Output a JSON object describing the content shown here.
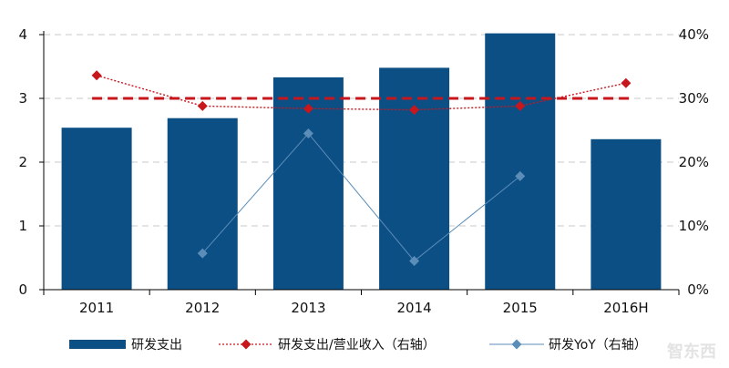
{
  "chart_data": {
    "type": "bar",
    "categories": [
      "2011",
      "2012",
      "2013",
      "2014",
      "2015",
      "2016H"
    ],
    "series": [
      {
        "name": "研发支出",
        "type": "bar",
        "axis": "left",
        "color": "#0c4f85",
        "values": [
          2.54,
          2.69,
          3.33,
          3.48,
          4.02,
          2.36
        ]
      },
      {
        "name": "研发支出/营业收入（右轴）",
        "type": "line",
        "axis": "right",
        "color": "#c8161d",
        "line_style": "dotted",
        "marker": "diamond",
        "values": [
          0.336,
          0.288,
          0.284,
          0.282,
          0.288,
          0.324
        ]
      },
      {
        "name": "研发YoY（右轴）",
        "type": "line",
        "axis": "right",
        "color": "#5b8db8",
        "line_style": "solid",
        "marker": "diamond",
        "values": [
          null,
          0.057,
          0.245,
          0.045,
          0.178,
          null
        ]
      }
    ],
    "reference_line": {
      "axis": "right",
      "value": 0.3,
      "color": "#c8161d",
      "style": "dashed",
      "x_extent": [
        "2011",
        "2016H"
      ]
    },
    "y_left": {
      "range": [
        0,
        4
      ],
      "ticks": [
        0,
        1,
        2,
        3,
        4
      ],
      "tick_labels": [
        "0",
        "1",
        "2",
        "3",
        "4"
      ]
    },
    "y_right": {
      "range": [
        0,
        0.4
      ],
      "ticks": [
        0,
        0.1,
        0.2,
        0.3,
        0.4
      ],
      "tick_labels": [
        "0%",
        "10%",
        "20%",
        "30%",
        "40%"
      ]
    },
    "grid": "horizontal dashed",
    "legend_placement": "bottom",
    "title": "",
    "xlabel": "",
    "ylabel": ""
  },
  "watermark": {
    "text": "智东西"
  }
}
